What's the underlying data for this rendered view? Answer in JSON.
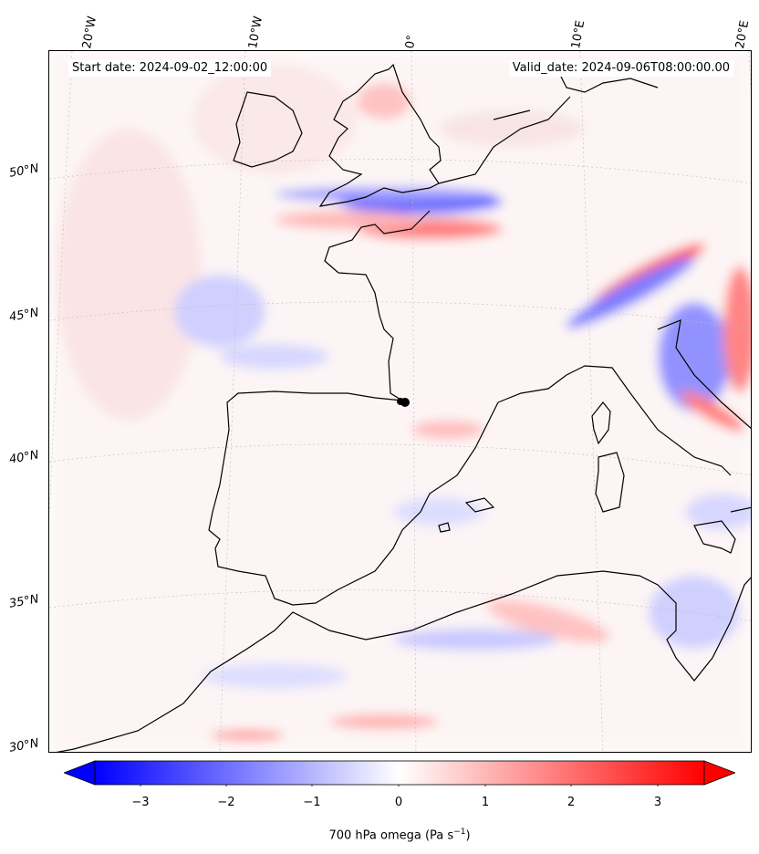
{
  "annotations": {
    "start": "Start date: 2024-09-02_12:00:00",
    "valid": "Valid_date: 2024-09-06T08:00:00.00"
  },
  "lon_labels": [
    "20°W",
    "10°W",
    "0°",
    "10°E",
    "20°E"
  ],
  "lat_labels": [
    "50°N",
    "45°N",
    "40°N",
    "35°N",
    "30°N"
  ],
  "colorbar": {
    "ticks": [
      "−3",
      "−2",
      "−1",
      "0",
      "1",
      "2",
      "3"
    ],
    "label": "700 hPa omega (Pa s",
    "label_sup": "−1",
    "label_end": ")",
    "range": [
      -3.75,
      3.75
    ],
    "colors": {
      "low": "#0000ff",
      "mid": "#ffffff",
      "high": "#ff0000"
    }
  },
  "map_features": {
    "field": "700 hPa omega",
    "marker": "site-dot"
  }
}
